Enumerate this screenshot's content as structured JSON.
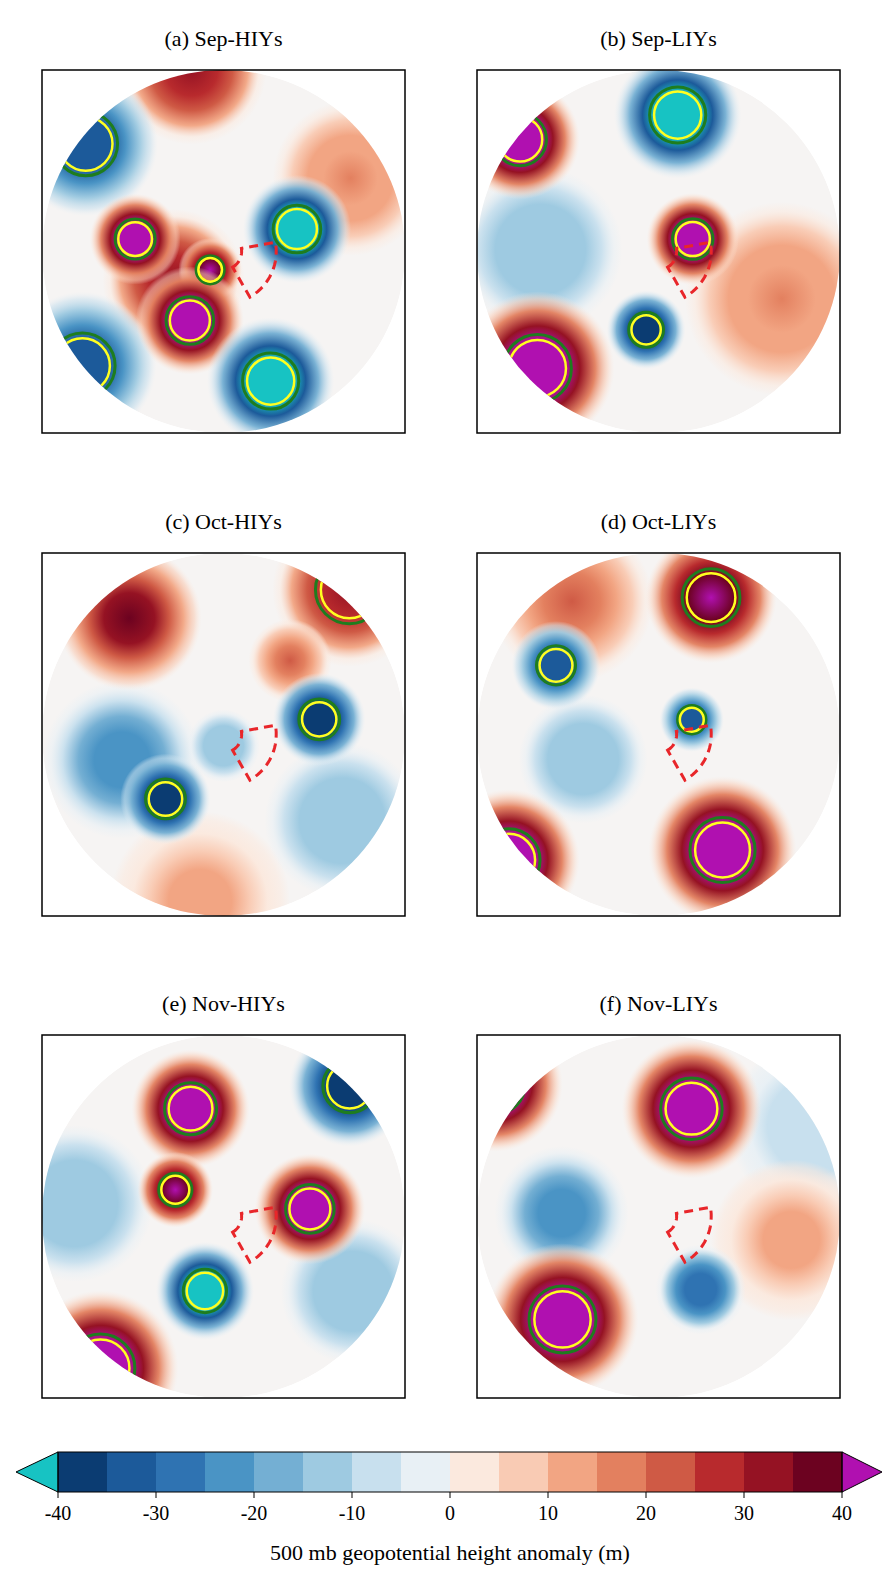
{
  "chart_data": {
    "type": "map",
    "lat_range": [
      20,
      90
    ],
    "region": {
      "lon": [
        30,
        100
      ],
      "lat": [
        67,
        82
      ]
    },
    "panels": [
      {
        "title": "(a) Sep-HIYs",
        "centers": [
          {
            "lon": 120,
            "lat": 31,
            "value": 15,
            "radius": 26,
            "significant": false
          },
          {
            "lon": -170,
            "lat": 19,
            "value": 30,
            "radius": 22,
            "significant": false
          },
          {
            "lon": -60,
            "lat": 65,
            "value": 30,
            "radius": 30,
            "significant": false
          },
          {
            "lon": -128,
            "lat": 22,
            "value": -35,
            "radius": 22,
            "significant": true
          },
          {
            "lon": -51,
            "lat": 20,
            "value": -35,
            "radius": 22,
            "significant": true
          },
          {
            "lon": -98,
            "lat": 52,
            "value": 45,
            "radius": 18,
            "significant": true
          },
          {
            "lon": -36,
            "lat": 80,
            "value": 40,
            "radius": 14,
            "significant": true
          },
          {
            "lon": -26,
            "lat": 57,
            "value": 45,
            "radius": 22,
            "significant": true
          },
          {
            "lon": 107,
            "lat": 57,
            "value": -45,
            "radius": 22,
            "significant": true
          },
          {
            "lon": 20,
            "lat": 34,
            "value": -45,
            "radius": 22,
            "significant": true
          }
        ]
      },
      {
        "title": "(b) Sep-LIYs",
        "centers": [
          {
            "lon": -91,
            "lat": 41,
            "value": -15,
            "radius": 30,
            "significant": false
          },
          {
            "lon": 69,
            "lat": 36,
            "value": 15,
            "radius": 34,
            "significant": false
          },
          {
            "lon": 172,
            "lat": 34,
            "value": -45,
            "radius": 22,
            "significant": true
          },
          {
            "lon": 110,
            "lat": 74,
            "value": 45,
            "radius": 20,
            "significant": true
          },
          {
            "lon": -129,
            "lat": 21,
            "value": 45,
            "radius": 18,
            "significant": true
          },
          {
            "lon": -46,
            "lat": 24,
            "value": 45,
            "radius": 24,
            "significant": true
          },
          {
            "lon": -9,
            "lat": 56,
            "value": -40,
            "radius": 16,
            "significant": true
          }
        ]
      },
      {
        "title": "(c) Oct-HIYs",
        "centers": [
          {
            "lon": -8,
            "lat": 24,
            "value": 12,
            "radius": 28,
            "significant": false
          },
          {
            "lon": 54,
            "lat": 31,
            "value": -15,
            "radius": 26,
            "significant": false
          },
          {
            "lon": -76,
            "lat": 46,
            "value": -25,
            "radius": 30,
            "significant": false
          },
          {
            "lon": 0,
            "lat": 85,
            "value": -15,
            "radius": 16,
            "significant": false
          },
          {
            "lon": -141,
            "lat": 30,
            "value": 35,
            "radius": 24,
            "significant": false
          },
          {
            "lon": 139,
            "lat": 17,
            "value": 30,
            "radius": 22,
            "significant": true
          },
          {
            "lon": 138,
            "lat": 48,
            "value": 20,
            "radius": 16,
            "significant": false
          },
          {
            "lon": -42,
            "lat": 53,
            "value": -40,
            "radius": 18,
            "significant": true
          },
          {
            "lon": 99,
            "lat": 49,
            "value": -40,
            "radius": 18,
            "significant": true
          }
        ]
      },
      {
        "title": "(d) Oct-LIYs",
        "centers": [
          {
            "lon": -147,
            "lat": 27,
            "value": 20,
            "radius": 26,
            "significant": false
          },
          {
            "lon": -72,
            "lat": 56,
            "value": -15,
            "radius": 26,
            "significant": false
          },
          {
            "lon": 159,
            "lat": 31,
            "value": 40,
            "radius": 22,
            "significant": true
          },
          {
            "lon": -124,
            "lat": 39,
            "value": -35,
            "radius": 16,
            "significant": true
          },
          {
            "lon": 114,
            "lat": 74,
            "value": -35,
            "radius": 14,
            "significant": true
          },
          {
            "lon": -50,
            "lat": 16,
            "value": 45,
            "radius": 20,
            "significant": true
          },
          {
            "lon": 29,
            "lat": 36,
            "value": 45,
            "radius": 26,
            "significant": true
          }
        ]
      },
      {
        "title": "(e) Nov-HIYs",
        "centers": [
          {
            "lon": -95,
            "lat": 30,
            "value": -15,
            "radius": 26,
            "significant": false
          },
          {
            "lon": 60,
            "lat": 30,
            "value": -15,
            "radius": 24,
            "significant": false
          },
          {
            "lon": -163,
            "lat": 43,
            "value": 45,
            "radius": 22,
            "significant": true
          },
          {
            "lon": -119,
            "lat": 66,
            "value": 40,
            "radius": 16,
            "significant": true
          },
          {
            "lon": 95,
            "lat": 53,
            "value": 45,
            "radius": 22,
            "significant": true
          },
          {
            "lon": -14,
            "lat": 57,
            "value": -45,
            "radius": 20,
            "significant": true
          },
          {
            "lon": -39,
            "lat": 16,
            "value": 45,
            "radius": 22,
            "significant": true
          },
          {
            "lon": 136,
            "lat": 20,
            "value": -40,
            "radius": 18,
            "significant": true
          }
        ]
      },
      {
        "title": "(f) Nov-LIYs",
        "centers": [
          {
            "lon": 120,
            "lat": 20,
            "value": -10,
            "radius": 26,
            "significant": false
          },
          {
            "lon": 80,
            "lat": 35,
            "value": 12,
            "radius": 28,
            "significant": false
          },
          {
            "lon": -92,
            "lat": 49,
            "value": -25,
            "radius": 26,
            "significant": false
          },
          {
            "lon": 30,
            "lat": 54,
            "value": -30,
            "radius": 18,
            "significant": false
          },
          {
            "lon": 163,
            "lat": 43,
            "value": 45,
            "radius": 26,
            "significant": true
          },
          {
            "lon": -43,
            "lat": 33,
            "value": 45,
            "radius": 26,
            "significant": true
          },
          {
            "lon": -129,
            "lat": 12,
            "value": 45,
            "radius": 18,
            "significant": true
          }
        ]
      }
    ],
    "colorbar": {
      "label": "500 mb geopotential height anomaly (m)",
      "range": [
        -40,
        40
      ],
      "ticks": [
        -40,
        -30,
        -20,
        -10,
        0,
        10,
        20,
        30,
        40
      ],
      "levels": [
        -40,
        -35,
        -30,
        -25,
        -20,
        -15,
        -10,
        -5,
        0,
        5,
        10,
        15,
        20,
        25,
        30,
        35,
        40
      ]
    }
  }
}
